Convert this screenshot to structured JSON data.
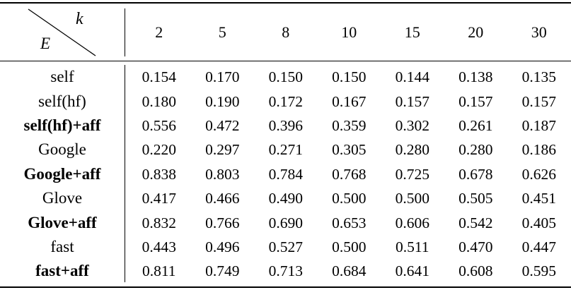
{
  "header": {
    "corner_top_label": "k",
    "corner_bottom_label": "E",
    "columns": [
      "2",
      "5",
      "8",
      "10",
      "15",
      "20",
      "30"
    ]
  },
  "rows": [
    {
      "label": "self",
      "bold": false,
      "values": [
        "0.154",
        "0.170",
        "0.150",
        "0.150",
        "0.144",
        "0.138",
        "0.135"
      ]
    },
    {
      "label": "self(hf)",
      "bold": false,
      "values": [
        "0.180",
        "0.190",
        "0.172",
        "0.167",
        "0.157",
        "0.157",
        "0.157"
      ]
    },
    {
      "label": "self(hf)+aff",
      "bold": true,
      "values": [
        "0.556",
        "0.472",
        "0.396",
        "0.359",
        "0.302",
        "0.261",
        "0.187"
      ]
    },
    {
      "label": "Google",
      "bold": false,
      "values": [
        "0.220",
        "0.297",
        "0.271",
        "0.305",
        "0.280",
        "0.280",
        "0.186"
      ]
    },
    {
      "label": "Google+aff",
      "bold": true,
      "values": [
        "0.838",
        "0.803",
        "0.784",
        "0.768",
        "0.725",
        "0.678",
        "0.626"
      ]
    },
    {
      "label": "Glove",
      "bold": false,
      "values": [
        "0.417",
        "0.466",
        "0.490",
        "0.500",
        "0.500",
        "0.505",
        "0.451"
      ]
    },
    {
      "label": "Glove+aff",
      "bold": true,
      "values": [
        "0.832",
        "0.766",
        "0.690",
        "0.653",
        "0.606",
        "0.542",
        "0.405"
      ]
    },
    {
      "label": "fast",
      "bold": false,
      "values": [
        "0.443",
        "0.496",
        "0.527",
        "0.500",
        "0.511",
        "0.470",
        "0.447"
      ]
    },
    {
      "label": "fast+aff",
      "bold": true,
      "values": [
        "0.811",
        "0.749",
        "0.713",
        "0.684",
        "0.641",
        "0.608",
        "0.595"
      ]
    }
  ]
}
